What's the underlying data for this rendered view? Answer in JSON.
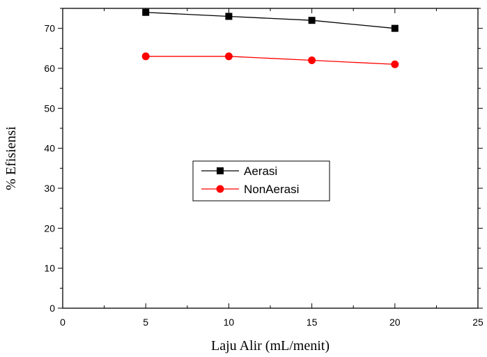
{
  "chart_data": {
    "type": "line",
    "xlabel": "Laju Alir (mL/menit)",
    "ylabel": "% Efisiensi",
    "xlim": [
      0,
      25
    ],
    "ylim": [
      0,
      75
    ],
    "x_ticks": [
      0,
      5,
      10,
      15,
      20,
      25
    ],
    "y_ticks": [
      0,
      10,
      20,
      30,
      40,
      50,
      60,
      70
    ],
    "grid": false,
    "legend_position": "center",
    "x": [
      5,
      10,
      15,
      20
    ],
    "series": [
      {
        "name": "Aerasi",
        "values": [
          74,
          73,
          72,
          70
        ],
        "color": "#000000",
        "marker": "square"
      },
      {
        "name": "NonAerasi",
        "values": [
          63,
          63,
          62,
          61
        ],
        "color": "#ff0000",
        "marker": "circle"
      }
    ]
  }
}
